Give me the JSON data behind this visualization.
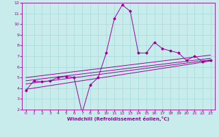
{
  "xlabel": "Windchill (Refroidissement éolien,°C)",
  "background_color": "#c8ecec",
  "line_color": "#990099",
  "grid_color": "#aadddd",
  "xlim": [
    -0.5,
    23.5
  ],
  "ylim": [
    2,
    12
  ],
  "xticks": [
    0,
    1,
    2,
    3,
    4,
    5,
    6,
    7,
    8,
    9,
    10,
    11,
    12,
    13,
    14,
    15,
    16,
    17,
    18,
    19,
    20,
    21,
    22,
    23
  ],
  "yticks": [
    2,
    3,
    4,
    5,
    6,
    7,
    8,
    9,
    10,
    11,
    12
  ],
  "main_series": [
    [
      0,
      3.8
    ],
    [
      1,
      4.7
    ],
    [
      2,
      4.6
    ],
    [
      3,
      4.7
    ],
    [
      4,
      5.0
    ],
    [
      5,
      5.1
    ],
    [
      6,
      5.0
    ],
    [
      7,
      1.7
    ],
    [
      8,
      4.3
    ],
    [
      9,
      5.0
    ],
    [
      10,
      7.3
    ],
    [
      11,
      10.5
    ],
    [
      12,
      11.8
    ],
    [
      13,
      11.2
    ],
    [
      14,
      7.3
    ],
    [
      15,
      7.3
    ],
    [
      16,
      8.3
    ],
    [
      17,
      7.7
    ],
    [
      18,
      7.5
    ],
    [
      19,
      7.3
    ],
    [
      20,
      6.6
    ],
    [
      21,
      7.0
    ],
    [
      22,
      6.5
    ],
    [
      23,
      6.6
    ]
  ],
  "trend_lines": [
    [
      [
        0,
        3.9
      ],
      [
        23,
        6.55
      ]
    ],
    [
      [
        0,
        4.4
      ],
      [
        23,
        6.65
      ]
    ],
    [
      [
        0,
        4.7
      ],
      [
        23,
        6.8
      ]
    ],
    [
      [
        0,
        5.0
      ],
      [
        23,
        7.1
      ]
    ]
  ]
}
